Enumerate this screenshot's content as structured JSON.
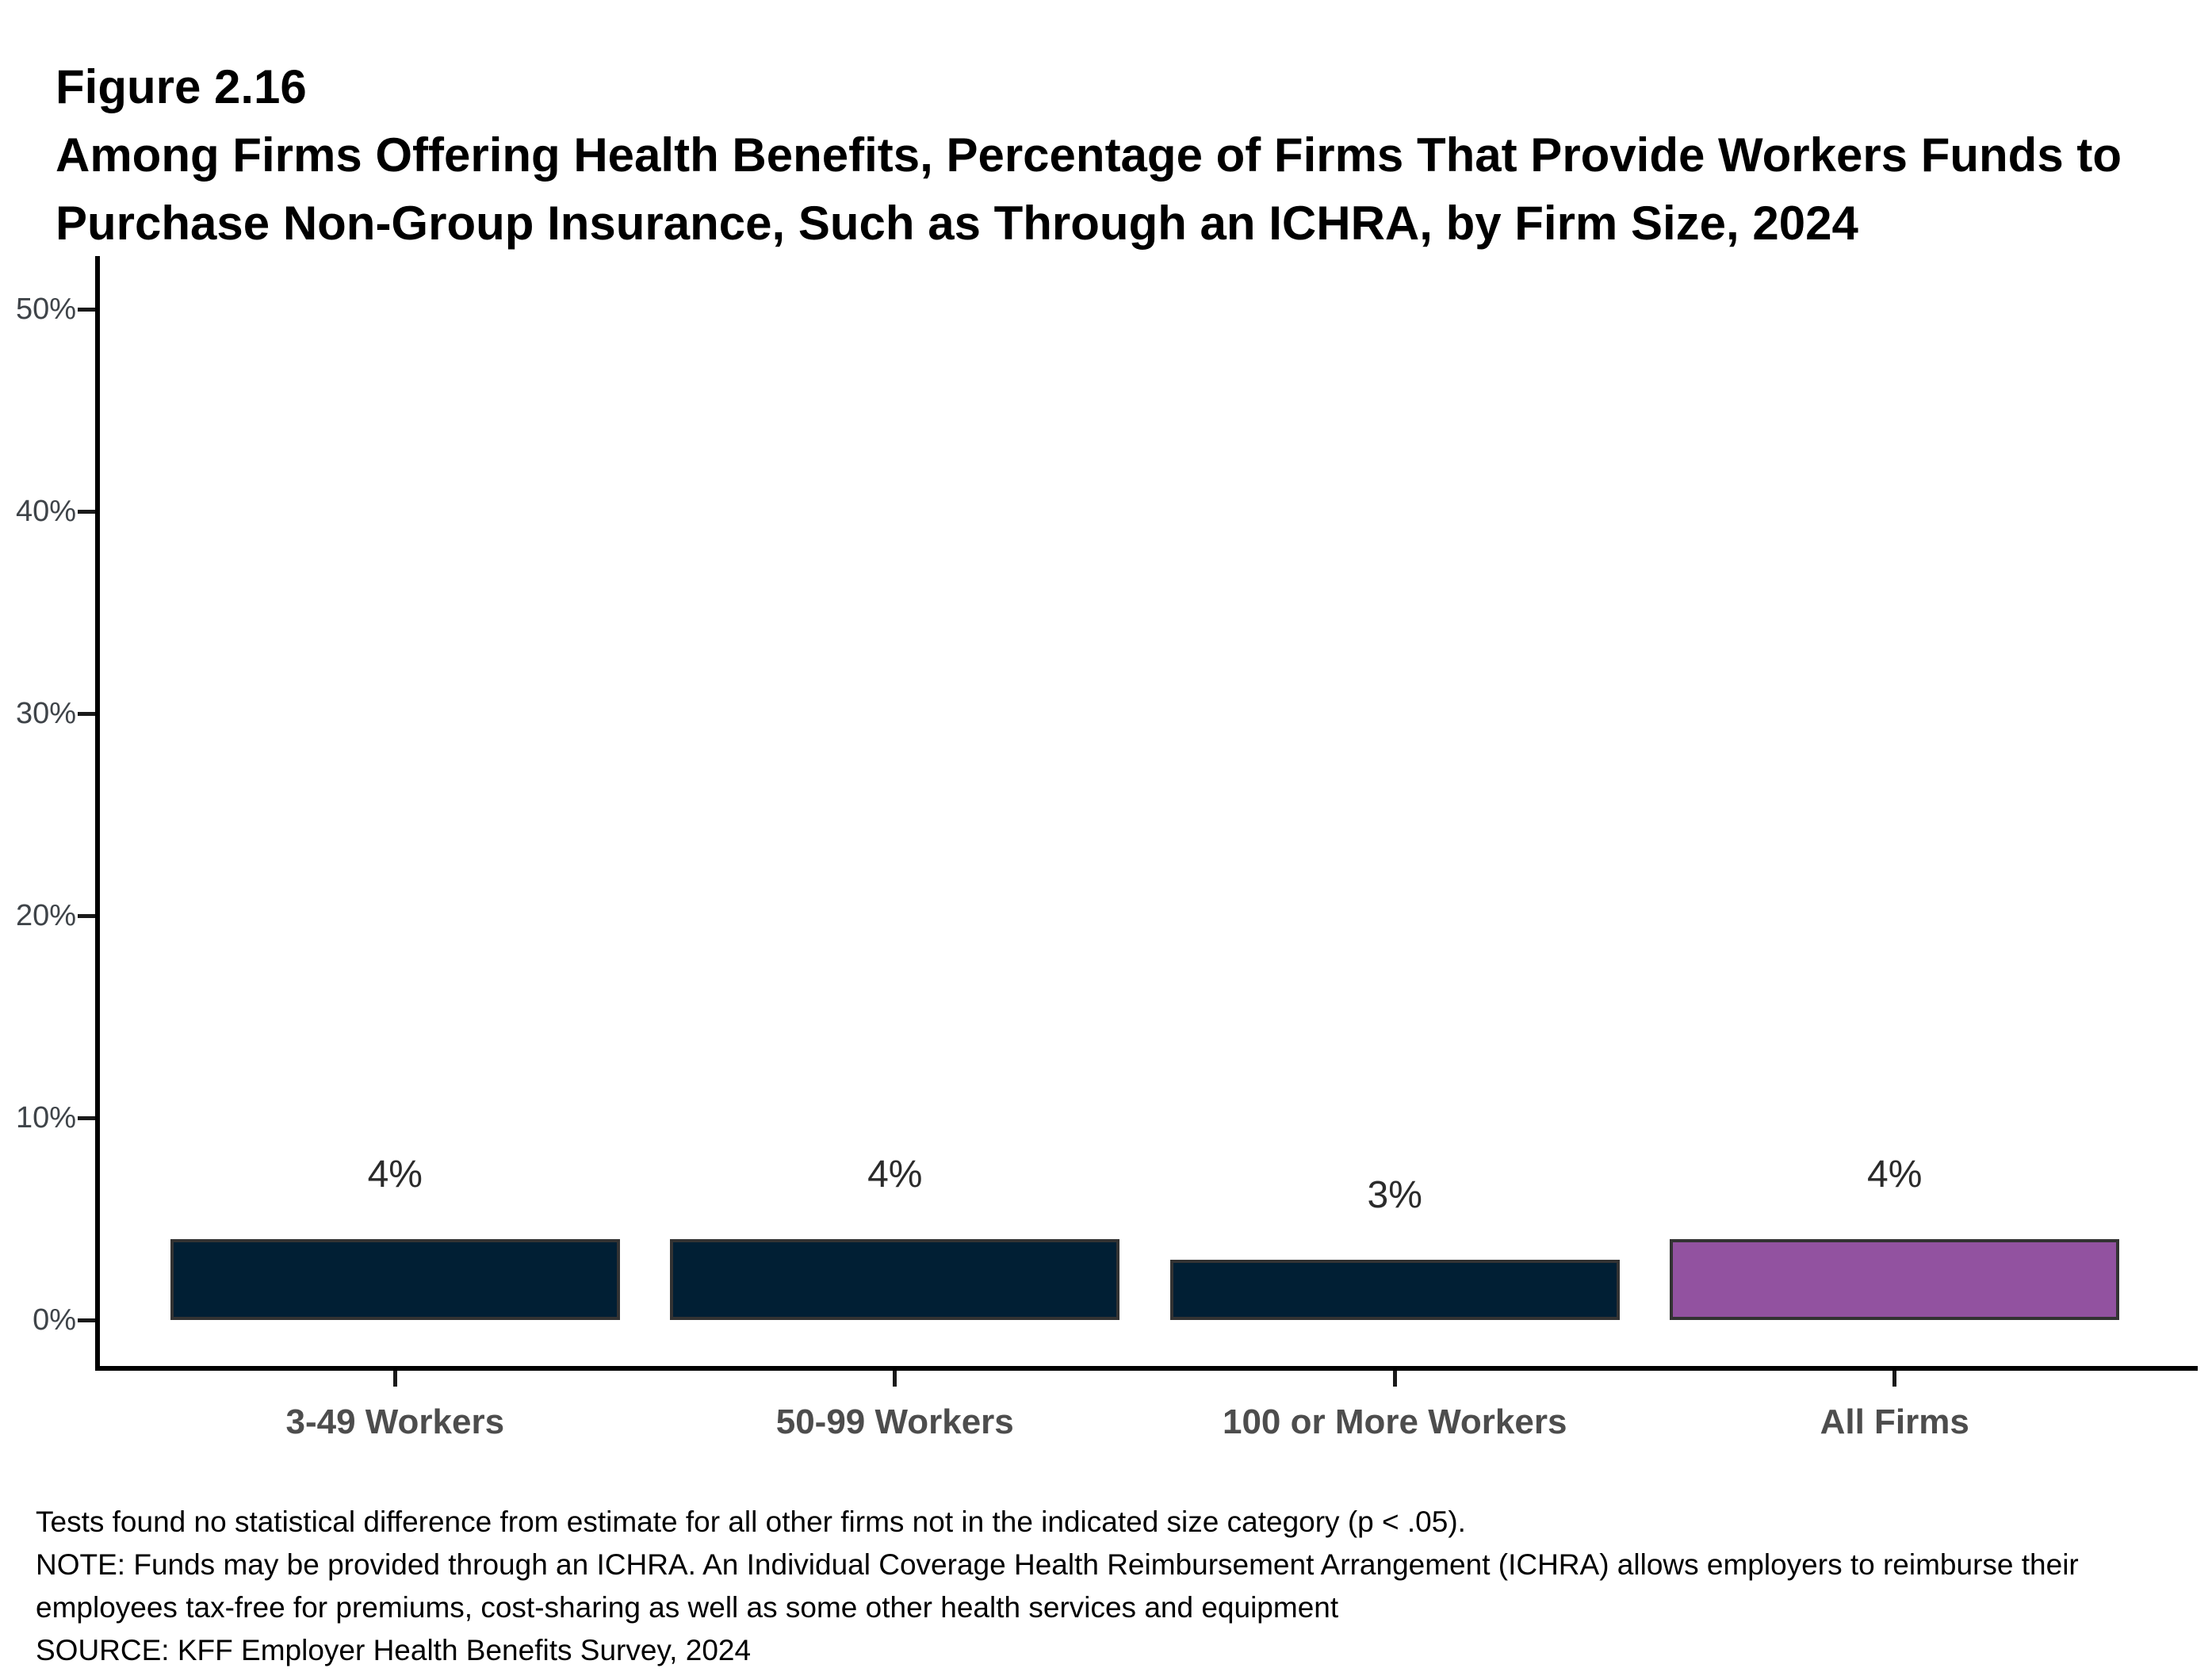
{
  "figure": {
    "label": "Figure 2.16",
    "title_lines": [
      "Among Firms Offering Health Benefits, Percentage of Firms That Provide Workers Funds to",
      "Purchase Non-Group Insurance, Such as Through an ICHRA, by Firm Size, 2024"
    ]
  },
  "chart_data": {
    "type": "bar",
    "title": "Among Firms Offering Health Benefits, Percentage of Firms That Provide Workers Funds to Purchase Non-Group Insurance, Such as Through an ICHRA, by Firm Size, 2024",
    "categories": [
      "3-49 Workers",
      "50-99 Workers",
      "100 or More Workers",
      "All Firms"
    ],
    "values": [
      4,
      4,
      3,
      4
    ],
    "value_labels": [
      "4%",
      "4%",
      "3%",
      "4%"
    ],
    "bar_colors": [
      "#011f34",
      "#011f34",
      "#011f34",
      "#9252a0"
    ],
    "xlabel": "",
    "ylabel": "",
    "ylim": [
      0,
      52
    ],
    "yticks": [
      {
        "label": "0%",
        "value": 0
      },
      {
        "label": "10%",
        "value": 10
      },
      {
        "label": "20%",
        "value": 20
      },
      {
        "label": "30%",
        "value": 30
      },
      {
        "label": "40%",
        "value": 40
      },
      {
        "label": "50%",
        "value": 50
      }
    ],
    "grid": false,
    "legend": false
  },
  "footnotes": {
    "lines": [
      "Tests found no statistical difference from estimate for all other firms not in the indicated size category (p < .05).",
      "NOTE: Funds may be provided through an ICHRA. An Individual Coverage Health Reimbursement Arrangement (ICHRA) allows employers to reimburse their",
      "employees tax-free for premiums, cost-sharing as well as some other health services and equipment",
      "SOURCE: KFF Employer Health Benefits Survey, 2024"
    ]
  },
  "colors": {
    "bar_navy": "#011f34",
    "bar_purple": "#9252a0",
    "bar_border": "#333333",
    "axis": "#000000",
    "y_tick_label": "#3f4449",
    "category_label": "#4d4d4d",
    "data_label": "#2b2b2b",
    "background": "#ffffff"
  }
}
